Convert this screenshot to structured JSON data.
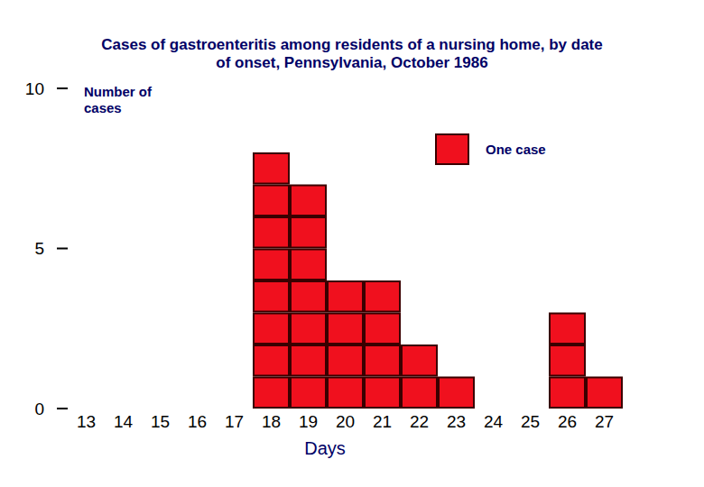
{
  "chart_data": {
    "type": "bar",
    "title": "Cases of gastroenteritis among residents of a nursing home, by date of onset, Pennsylvania, October 1986",
    "x_label": "Days",
    "y_label": "Number of cases",
    "categories": [
      "13",
      "14",
      "15",
      "16",
      "17",
      "18",
      "19",
      "20",
      "21",
      "22",
      "23",
      "24",
      "25",
      "26",
      "27"
    ],
    "series": [
      {
        "name": "One case",
        "color": "#f0101e",
        "values": [
          0,
          0,
          0,
          0,
          0,
          8,
          7,
          4,
          4,
          2,
          1,
          0,
          0,
          3,
          1
        ]
      }
    ],
    "ylim": [
      0,
      10
    ],
    "yticks": [
      0,
      5,
      10
    ],
    "grid": false,
    "legend": "top-right"
  }
}
